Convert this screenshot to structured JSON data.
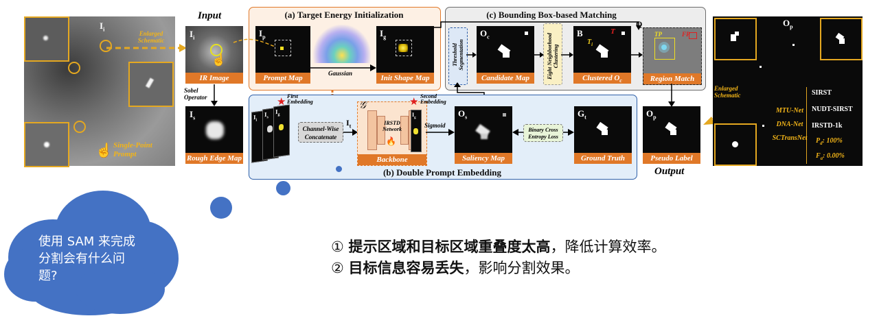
{
  "diagram": {
    "left_panel": {
      "symbol": "I",
      "symbol_sub": "i",
      "enlarged_label": "Enlarged\nSchematic",
      "prompt_label": "Single-Point\nPrompt"
    },
    "input": {
      "heading": "Input",
      "ir_image_symbol": "I",
      "ir_image_sub": "i",
      "ir_image_label": "IR Image",
      "sobel_label": "Sobel\nOperator",
      "rough_symbol": "I",
      "rough_sub": "s",
      "rough_label": "Rough Edge Map"
    },
    "section_a": {
      "title": "(a) Target Energy Initialization",
      "prompt_map_symbol": "I",
      "prompt_map_sub": "p",
      "prompt_map_label": "Prompt Map",
      "gaussian_label": "Gaussian",
      "init_shape_symbol": "I",
      "init_shape_sub": "g",
      "init_shape_label": "Init Shape Map"
    },
    "section_b": {
      "title": "(b) Double Prompt Embedding",
      "first_embedding": "First\nEmbedding",
      "second_embedding": "Second\nEmbedding",
      "stack_i": "I",
      "stack_i_sub": "i",
      "stack_s_sub": "s",
      "stack_g_sub": "g",
      "concat_label": "Channel-Wise\nConcatenate",
      "it_symbol": "I",
      "it_sub": "t",
      "g_symbol": "𝒢",
      "network_label": "IRSTD\nNetwork",
      "backbone_label": "Backbone",
      "sigmoid_label": "Sigmoid",
      "saliency_symbol": "O",
      "saliency_sub": "s",
      "saliency_label": "Saliency Map",
      "loss_label": "Binary Cross\nEntropy Loss",
      "gt_symbol": "G",
      "gt_sub": "t",
      "gt_label": "Ground Truth"
    },
    "section_c": {
      "title": "(c) Bounding Box-based Matching",
      "threshold_label": "Threshold\nSegmentation",
      "candidate_symbol": "O",
      "candidate_sub": "c",
      "candidate_label": "Candidate Map",
      "eight_label": "Eight Neighborhood\nClustering",
      "clustered_symbol": "B",
      "clustered_label": "Clustered O",
      "clustered_label_sub": "c",
      "t_label": "T",
      "ti_label": "T",
      "ti_sub": "i",
      "q_label": "Q",
      "tp_label": "TP",
      "fp_label": "FP",
      "region_label": "Region Match"
    },
    "output": {
      "heading": "Output",
      "pseudo_symbol": "O",
      "pseudo_sub": "p",
      "pseudo_label": "Pseudo Label"
    },
    "right_panel": {
      "symbol": "O",
      "symbol_sub": "p",
      "enlarged_label": "Enlarged\nSchematic",
      "methods": [
        "MTU-Net",
        "DNA-Net",
        "SCTransNet"
      ],
      "datasets": [
        "SIRST",
        "NUDT-SIRST",
        "IRSTD-1k"
      ],
      "pd_label": "P",
      "pd_sub": "d",
      "pd_value": ": 100%",
      "fa_label": "F",
      "fa_sub": "a",
      "fa_value": ": 0.00%"
    }
  },
  "cloud": {
    "question": "使用 SAM 来完成分割会有什么问题?"
  },
  "answers": [
    {
      "num": "①",
      "bold": "提示区域和目标区域重叠度太高",
      "rest": "，降低计算效率。"
    },
    {
      "num": "②",
      "bold": "目标信息容易丢失",
      "rest": "，影响分割效果。"
    }
  ],
  "colors": {
    "orange": "#e07828",
    "blue_frame": "#2e5fa8",
    "gray_frame": "#6b6b6b",
    "cloud_blue": "#4472c4",
    "yellow": "#f2b418"
  }
}
